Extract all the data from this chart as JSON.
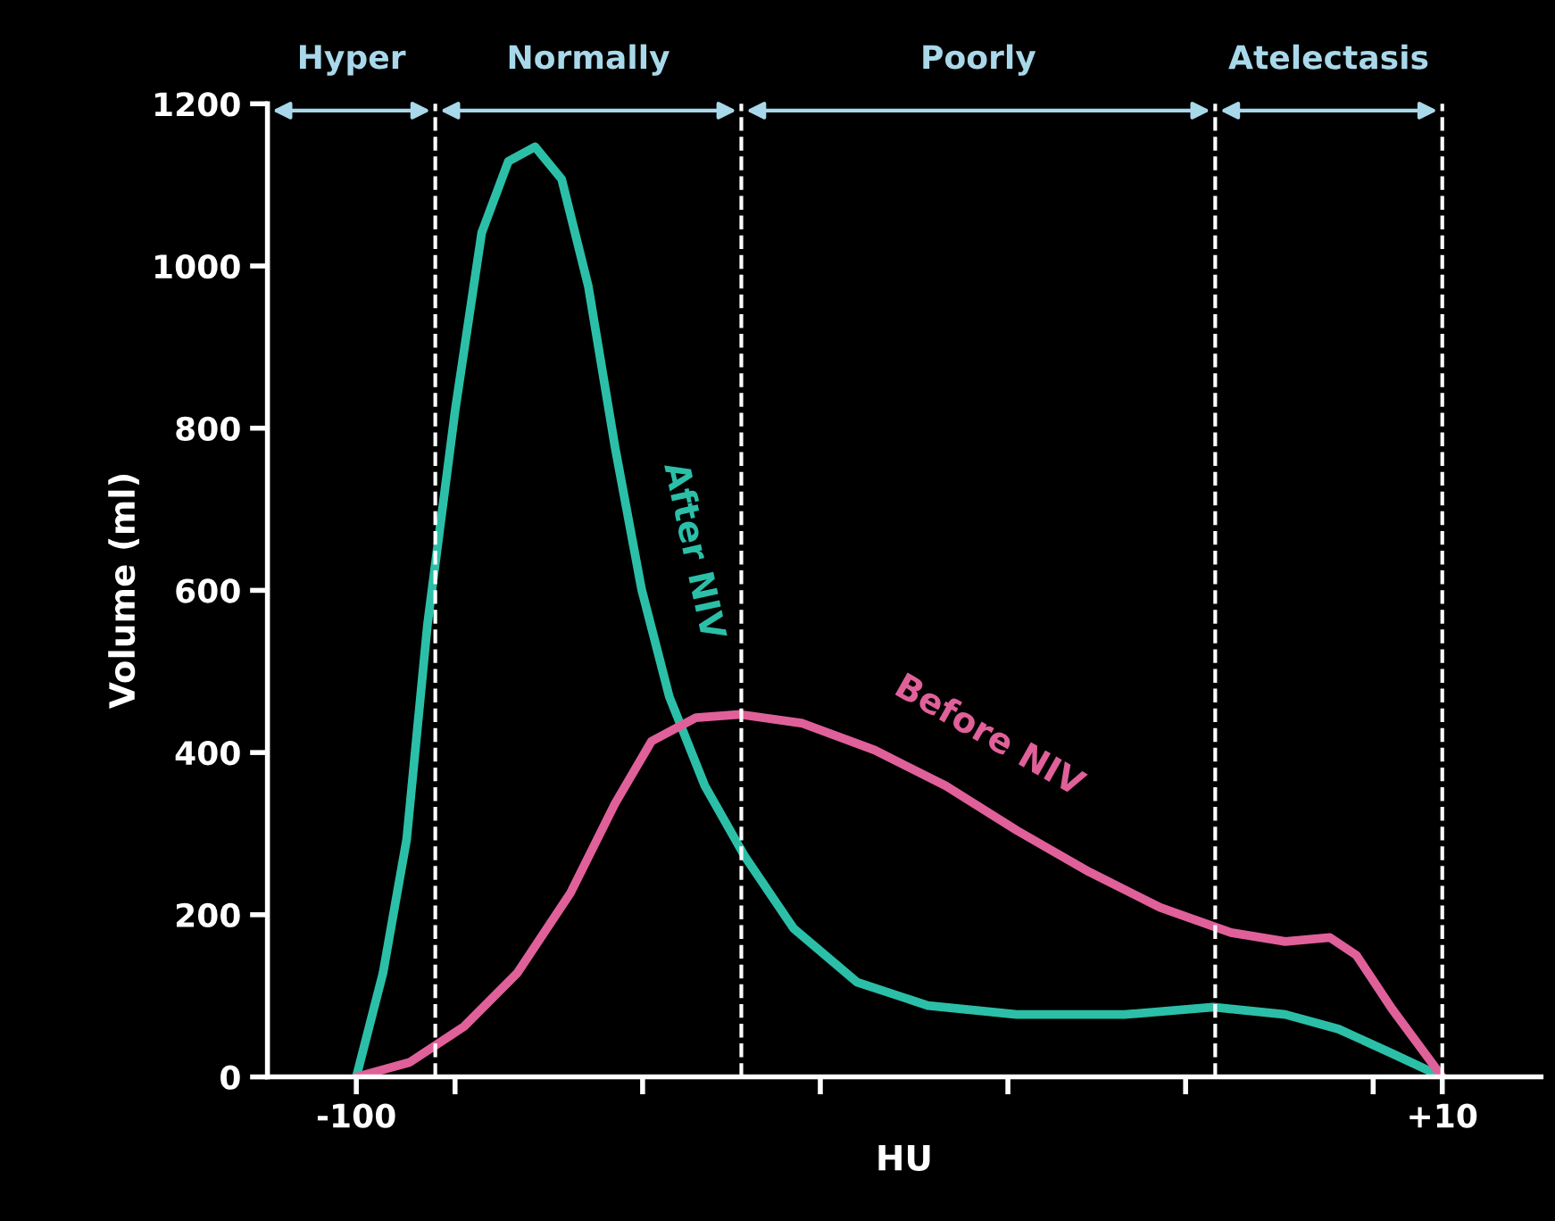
{
  "chart_data": {
    "type": "line",
    "xlabel": "HU",
    "ylabel": "Volume (ml)",
    "xlim": [
      -109,
      20
    ],
    "ylim": [
      0,
      1200
    ],
    "xticks": [
      {
        "value": -100,
        "label": "-100"
      },
      {
        "value": -90,
        "label": null
      },
      {
        "value": -71,
        "label": null
      },
      {
        "value": -53,
        "label": null
      },
      {
        "value": -34,
        "label": null
      },
      {
        "value": -16,
        "label": null
      },
      {
        "value": 3,
        "label": null
      },
      {
        "value": 10,
        "label": "+10"
      }
    ],
    "yticks": [
      0,
      200,
      400,
      600,
      800,
      1000,
      1200
    ],
    "grid": false,
    "legend": false,
    "marker": "none",
    "line_style": "solid",
    "series": [
      {
        "name": "After NIV",
        "color": "#2bbfa8",
        "x": [
          -100,
          -97.3,
          -94.9,
          -92.8,
          -90.0,
          -87.3,
          -84.6,
          -81.9,
          -79.2,
          -76.5,
          -73.8,
          -71.1,
          -68.3,
          -64.7,
          -60.6,
          -55.7,
          -49.3,
          -42.1,
          -33.1,
          -22.2,
          -13.2,
          -5.9,
          -0.5,
          4.9,
          10
        ],
        "values": [
          0,
          128,
          293,
          557,
          821,
          1041,
          1129,
          1147,
          1107,
          975,
          777,
          601,
          469,
          359,
          271,
          183,
          117,
          88,
          77,
          77,
          86,
          77,
          59,
          29,
          0
        ]
      },
      {
        "name": "Before NIV",
        "color": "#e0609a",
        "x": [
          -100,
          -94.6,
          -89.1,
          -83.7,
          -78.3,
          -73.8,
          -70.1,
          -65.6,
          -61.1,
          -54.8,
          -47.5,
          -40.3,
          -33.1,
          -25.8,
          -18.6,
          -11.4,
          -5.9,
          -1.4,
          1.3,
          4.9,
          10
        ],
        "values": [
          0,
          18,
          62,
          128,
          227,
          337,
          414,
          443,
          447,
          436,
          403,
          359,
          304,
          253,
          209,
          178,
          167,
          172,
          150,
          84,
          0
        ]
      }
    ],
    "ref_lines": [
      {
        "axis": "x",
        "value": -92,
        "color": "#ffffff",
        "line_style": "dashed"
      },
      {
        "axis": "x",
        "value": -61,
        "color": "#ffffff",
        "line_style": "dashed"
      },
      {
        "axis": "x",
        "value": -13,
        "color": "#ffffff",
        "line_style": "dashed"
      },
      {
        "axis": "x",
        "value": 10,
        "color": "#ffffff",
        "line_style": "dashed"
      }
    ],
    "annotations": [
      "Hyper",
      "Normally",
      "Poorly",
      "Atelectasis"
    ]
  }
}
